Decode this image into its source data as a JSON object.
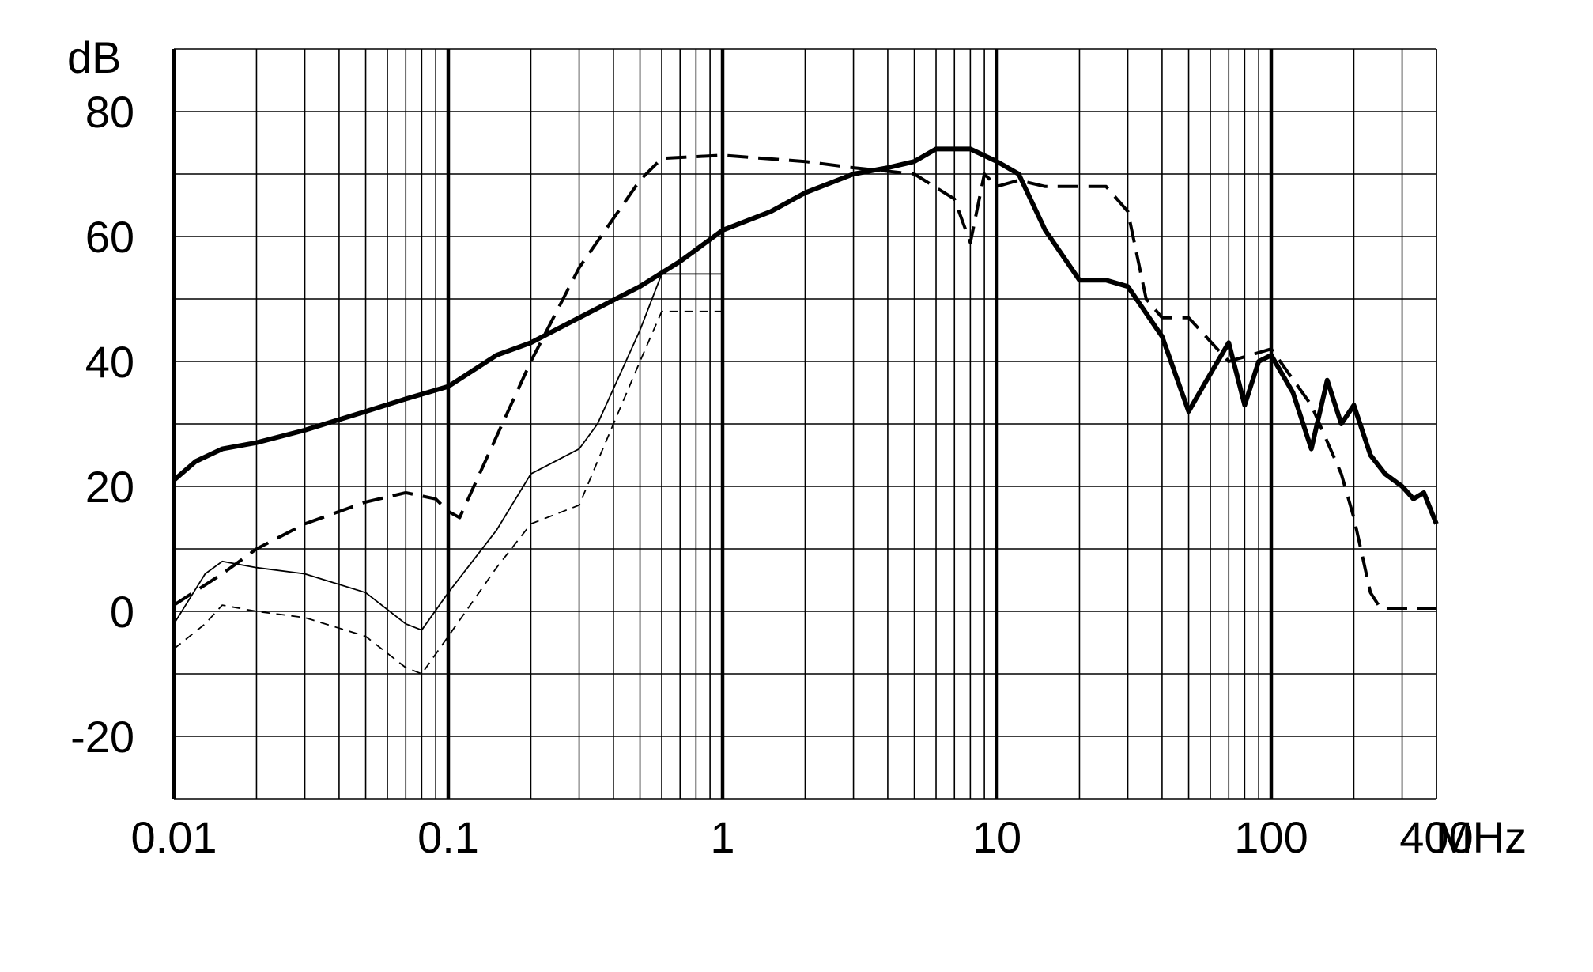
{
  "chart_data": {
    "type": "line",
    "xscale": "log",
    "xlim": [
      0.01,
      400
    ],
    "ylim": [
      -30,
      90
    ],
    "ylabel": "dB",
    "xunit": "MHz",
    "x_ticks": [
      {
        "value": 0.01,
        "label": "0.01"
      },
      {
        "value": 0.1,
        "label": "0.1"
      },
      {
        "value": 1,
        "label": "1"
      },
      {
        "value": 10,
        "label": "10"
      },
      {
        "value": 100,
        "label": "100"
      },
      {
        "value": 400,
        "label": "400"
      }
    ],
    "y_ticks": [
      {
        "value": 80,
        "label": "80"
      },
      {
        "value": 60,
        "label": "60"
      },
      {
        "value": 40,
        "label": "40"
      },
      {
        "value": 20,
        "label": "20"
      },
      {
        "value": 0,
        "label": "0"
      },
      {
        "value": -20,
        "label": "-20"
      }
    ],
    "grid": true,
    "legend": "none",
    "colors": {
      "line": "#000000",
      "grid": "#000000",
      "background": "#ffffff"
    },
    "series": [
      {
        "style": "thick-solid",
        "points": [
          [
            0.01,
            21
          ],
          [
            0.012,
            24
          ],
          [
            0.015,
            26
          ],
          [
            0.02,
            27
          ],
          [
            0.03,
            29
          ],
          [
            0.05,
            32
          ],
          [
            0.07,
            34
          ],
          [
            0.1,
            36
          ],
          [
            0.15,
            41
          ],
          [
            0.2,
            43
          ],
          [
            0.3,
            47
          ],
          [
            0.5,
            52
          ],
          [
            0.7,
            56
          ],
          [
            1,
            61
          ],
          [
            1.5,
            64
          ],
          [
            2,
            67
          ],
          [
            3,
            70
          ],
          [
            4,
            71
          ],
          [
            5,
            72
          ],
          [
            6,
            74
          ],
          [
            8,
            74
          ],
          [
            10,
            72
          ],
          [
            12,
            70
          ],
          [
            15,
            61
          ],
          [
            20,
            53
          ],
          [
            25,
            53
          ],
          [
            30,
            52
          ],
          [
            40,
            44
          ],
          [
            50,
            32
          ],
          [
            60,
            38
          ],
          [
            70,
            43
          ],
          [
            80,
            33
          ],
          [
            90,
            40
          ],
          [
            100,
            41
          ],
          [
            120,
            35
          ],
          [
            140,
            26
          ],
          [
            160,
            37
          ],
          [
            180,
            30
          ],
          [
            200,
            33
          ],
          [
            230,
            25
          ],
          [
            260,
            22
          ],
          [
            300,
            20
          ],
          [
            330,
            18
          ],
          [
            360,
            19
          ],
          [
            400,
            14
          ]
        ]
      },
      {
        "style": "dashed",
        "points": [
          [
            0.01,
            1
          ],
          [
            0.015,
            6
          ],
          [
            0.02,
            10
          ],
          [
            0.03,
            14
          ],
          [
            0.05,
            17.5
          ],
          [
            0.07,
            19
          ],
          [
            0.09,
            18
          ],
          [
            0.1,
            16
          ],
          [
            0.11,
            15
          ],
          [
            0.15,
            28
          ],
          [
            0.2,
            40
          ],
          [
            0.3,
            55
          ],
          [
            0.5,
            69
          ],
          [
            0.6,
            72.5
          ],
          [
            1,
            73
          ],
          [
            2,
            72
          ],
          [
            3,
            71
          ],
          [
            5,
            70
          ],
          [
            7,
            66
          ],
          [
            8,
            59
          ],
          [
            9,
            70
          ],
          [
            10,
            68
          ],
          [
            12,
            69
          ],
          [
            15,
            68
          ],
          [
            20,
            68
          ],
          [
            25,
            68
          ],
          [
            30,
            64
          ],
          [
            35,
            50
          ],
          [
            40,
            47
          ],
          [
            50,
            47
          ],
          [
            70,
            40
          ],
          [
            100,
            42
          ],
          [
            140,
            33
          ],
          [
            180,
            22
          ],
          [
            200,
            15
          ],
          [
            230,
            3
          ],
          [
            250,
            0.5
          ],
          [
            300,
            0.5
          ],
          [
            400,
            0.5
          ]
        ]
      },
      {
        "style": "thin-solid",
        "points": [
          [
            0.01,
            -2
          ],
          [
            0.013,
            6
          ],
          [
            0.015,
            8
          ],
          [
            0.02,
            7
          ],
          [
            0.03,
            6
          ],
          [
            0.05,
            3
          ],
          [
            0.07,
            -2
          ],
          [
            0.08,
            -3
          ],
          [
            0.1,
            3
          ],
          [
            0.15,
            13
          ],
          [
            0.2,
            22
          ],
          [
            0.3,
            26
          ],
          [
            0.35,
            30
          ],
          [
            0.5,
            45
          ],
          [
            0.6,
            54
          ],
          [
            0.7,
            54
          ],
          [
            1,
            54
          ]
        ]
      },
      {
        "style": "thin-dashed",
        "points": [
          [
            0.01,
            -6
          ],
          [
            0.013,
            -2
          ],
          [
            0.015,
            1
          ],
          [
            0.02,
            0
          ],
          [
            0.03,
            -1
          ],
          [
            0.05,
            -4
          ],
          [
            0.07,
            -9
          ],
          [
            0.08,
            -10
          ],
          [
            0.1,
            -4
          ],
          [
            0.15,
            7
          ],
          [
            0.2,
            14
          ],
          [
            0.3,
            17
          ],
          [
            0.35,
            24
          ],
          [
            0.5,
            40
          ],
          [
            0.6,
            48
          ],
          [
            0.7,
            48
          ],
          [
            1,
            48
          ]
        ]
      }
    ]
  }
}
